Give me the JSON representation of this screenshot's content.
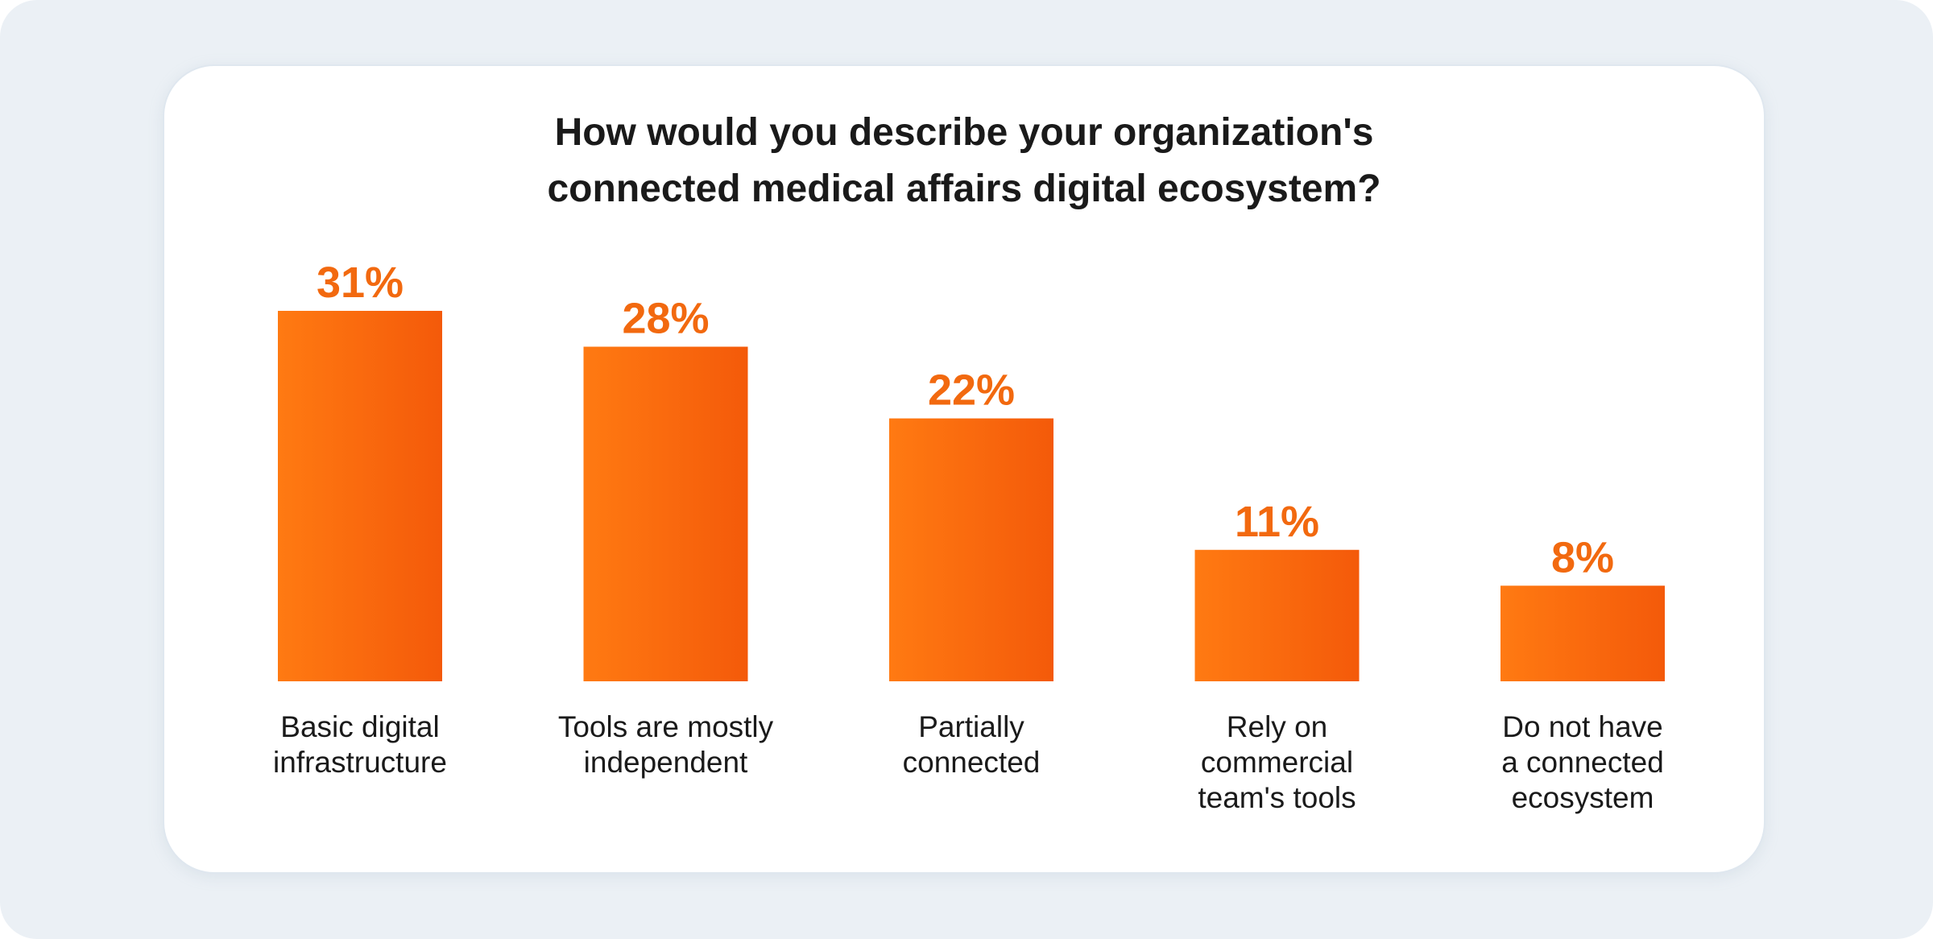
{
  "chart_data": {
    "type": "bar",
    "title_lines": [
      "How would you describe your organization's",
      "connected medical affairs digital ecosystem?"
    ],
    "categories": [
      [
        "Basic digital",
        "infrastructure"
      ],
      [
        "Tools are mostly",
        "independent"
      ],
      [
        "Partially",
        "connected"
      ],
      [
        "Rely on",
        "commercial",
        "team's tools"
      ],
      [
        "Do not have",
        "a connected",
        "ecosystem"
      ]
    ],
    "values": [
      31,
      28,
      22,
      11,
      8
    ],
    "value_labels": [
      "31%",
      "28%",
      "22%",
      "11%",
      "8%"
    ],
    "ylim": [
      0,
      31
    ],
    "grid": false,
    "bar_gradient": [
      "#ff7a12",
      "#f45a0a"
    ],
    "label_color": "#f2690f",
    "background_color": "#ebf0f5",
    "card_color": "#ffffff"
  }
}
